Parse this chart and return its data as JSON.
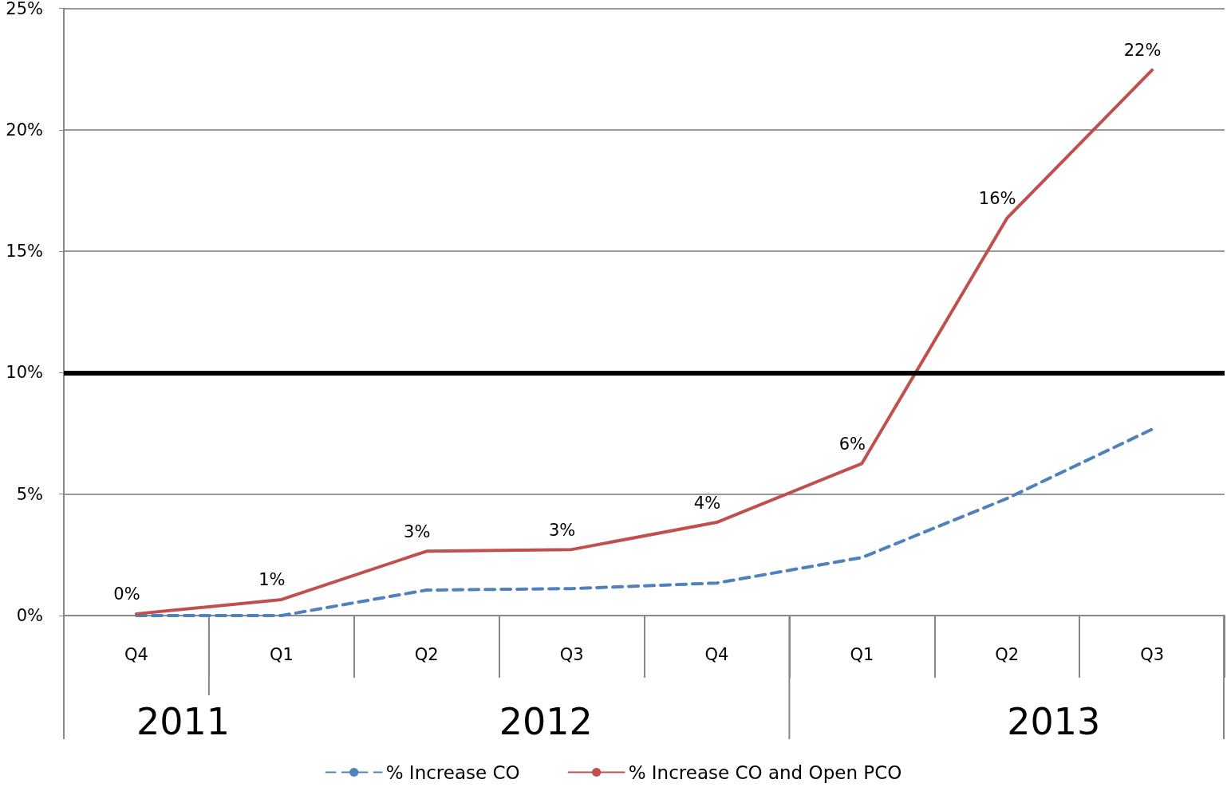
{
  "chart_data": {
    "type": "line",
    "categories": [
      "Q4",
      "Q1",
      "Q2",
      "Q3",
      "Q4",
      "Q1",
      "Q2",
      "Q3"
    ],
    "series": [
      {
        "name": "% Increase CO",
        "color": "#4f81bd",
        "line_style": "dashed",
        "values": [
          0,
          0,
          1.05,
          1.11,
          1.34,
          2.39,
          4.82,
          7.67
        ]
      },
      {
        "name": "% Increase CO and Open PCO",
        "color": "#c0504d",
        "line_style": "solid",
        "values": [
          0.07,
          0.66,
          2.65,
          2.72,
          3.84,
          6.26,
          16.36,
          22.46
        ],
        "value_labels": [
          "0%",
          "1%",
          "3%",
          "3%",
          "4%",
          "6%",
          "16%",
          "22%"
        ]
      }
    ],
    "ylim": [
      0,
      25
    ],
    "yticks": [
      {
        "value": 0,
        "label": "0%"
      },
      {
        "value": 5,
        "label": "5%"
      },
      {
        "value": 10,
        "label": "10%"
      },
      {
        "value": 15,
        "label": "15%"
      },
      {
        "value": 20,
        "label": "20%"
      },
      {
        "value": 25,
        "label": "25%"
      }
    ],
    "ref_lines": [
      {
        "axis": "y",
        "value": 10,
        "color": "#000000"
      }
    ],
    "annotations": [
      "2011",
      "2012",
      "2013"
    ],
    "grid": "y",
    "legend": "bottom",
    "marker": "none"
  }
}
